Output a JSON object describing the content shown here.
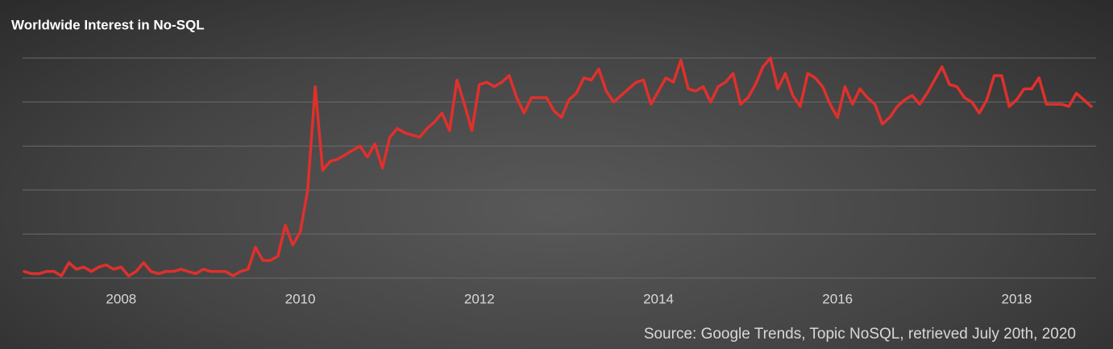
{
  "chart_data": {
    "type": "line",
    "title": "Worldwide Interest in No-SQL",
    "source": "Source: Google Trends, Topic NoSQL, retrieved July 20th, 2020",
    "color": "#e0302c",
    "grid": true,
    "show_ytick_labels": false,
    "xlim": [
      2006.917,
      2018.833
    ],
    "xticks": [
      2008,
      2010,
      2012,
      2014,
      2016,
      2018
    ],
    "ylim": [
      0,
      100
    ],
    "yticks": [
      0,
      20,
      40,
      60,
      80,
      100
    ],
    "x": [
      2006.917,
      2007,
      2007.083,
      2007.167,
      2007.25,
      2007.333,
      2007.417,
      2007.5,
      2007.583,
      2007.667,
      2007.75,
      2007.833,
      2007.917,
      2008,
      2008.083,
      2008.167,
      2008.25,
      2008.333,
      2008.417,
      2008.5,
      2008.583,
      2008.667,
      2008.75,
      2008.833,
      2008.917,
      2009,
      2009.083,
      2009.167,
      2009.25,
      2009.333,
      2009.417,
      2009.5,
      2009.583,
      2009.667,
      2009.75,
      2009.833,
      2009.917,
      2010,
      2010.083,
      2010.167,
      2010.25,
      2010.333,
      2010.417,
      2010.5,
      2010.583,
      2010.667,
      2010.75,
      2010.833,
      2010.917,
      2011,
      2011.083,
      2011.167,
      2011.25,
      2011.333,
      2011.417,
      2011.5,
      2011.583,
      2011.667,
      2011.75,
      2011.833,
      2011.917,
      2012,
      2012.083,
      2012.167,
      2012.25,
      2012.333,
      2012.417,
      2012.5,
      2012.583,
      2012.667,
      2012.75,
      2012.833,
      2012.917,
      2013,
      2013.083,
      2013.167,
      2013.25,
      2013.333,
      2013.417,
      2013.5,
      2013.583,
      2013.667,
      2013.75,
      2013.833,
      2013.917,
      2014,
      2014.083,
      2014.167,
      2014.25,
      2014.333,
      2014.417,
      2014.5,
      2014.583,
      2014.667,
      2014.75,
      2014.833,
      2014.917,
      2015,
      2015.083,
      2015.167,
      2015.25,
      2015.333,
      2015.417,
      2015.5,
      2015.583,
      2015.667,
      2015.75,
      2015.833,
      2015.917,
      2016,
      2016.083,
      2016.167,
      2016.25,
      2016.333,
      2016.417,
      2016.5,
      2016.583,
      2016.667,
      2016.75,
      2016.833,
      2016.917,
      2017,
      2017.083,
      2017.167,
      2017.25,
      2017.333,
      2017.417,
      2017.5,
      2017.583,
      2017.667,
      2017.75,
      2017.833,
      2017.917,
      2018,
      2018.083,
      2018.167,
      2018.25,
      2018.333,
      2018.417,
      2018.5,
      2018.583,
      2018.667,
      2018.75,
      2018.833
    ],
    "values": [
      3,
      2,
      2,
      3,
      3,
      1,
      7,
      4,
      5,
      3,
      5,
      6,
      4,
      5,
      1,
      3,
      7,
      3,
      2,
      3,
      3,
      4,
      3,
      2,
      4,
      3,
      3,
      3,
      1,
      3,
      4,
      14,
      8,
      8,
      10,
      24,
      15,
      21,
      40,
      87,
      49,
      53,
      54,
      56,
      58,
      60,
      55,
      61,
      50,
      64,
      68,
      66,
      65,
      64,
      68,
      71,
      75,
      67,
      90,
      79,
      67,
      88,
      89,
      87,
      89,
      92,
      82,
      75,
      82,
      82,
      82,
      76,
      73,
      81,
      84,
      91,
      90,
      95,
      85,
      80,
      83,
      86,
      89,
      90,
      79,
      85,
      91,
      89,
      99,
      86,
      85,
      87,
      80,
      87,
      89,
      93,
      79,
      82,
      88,
      96,
      100,
      86,
      93,
      83,
      78,
      93,
      91,
      87,
      79,
      73,
      87,
      79,
      86,
      82,
      79,
      70,
      73,
      78,
      81,
      83,
      79,
      84,
      90,
      96,
      88,
      87,
      82,
      80,
      75,
      81,
      92,
      92,
      78,
      81,
      86,
      86,
      91,
      79,
      79,
      79,
      78,
      84,
      81,
      78
    ]
  }
}
